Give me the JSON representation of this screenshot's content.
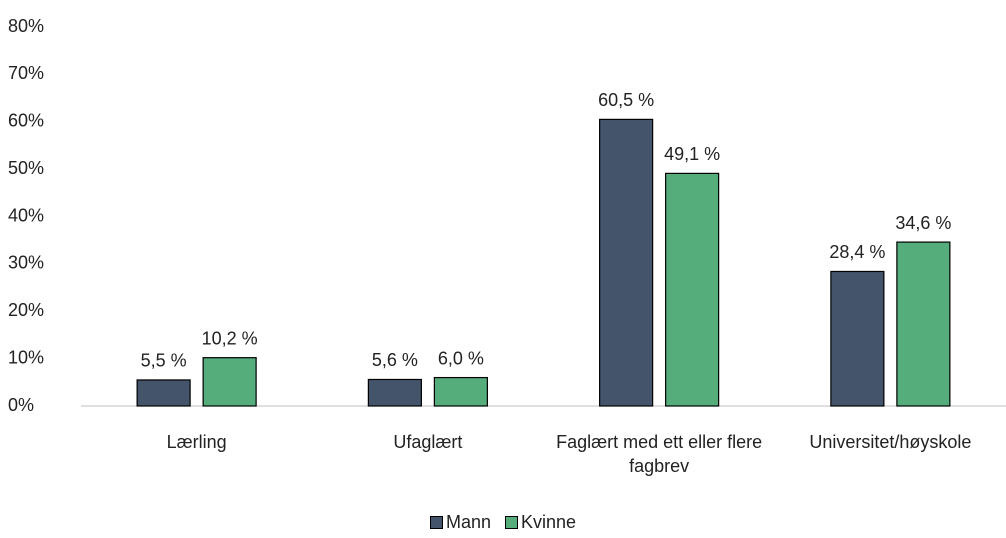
{
  "chart_data": {
    "type": "bar",
    "categories": [
      "Lærling",
      "Ufaglært",
      "Faglært med ett eller flere fagbrev",
      "Universitet/høyskole"
    ],
    "series": [
      {
        "name": "Mann",
        "color": "#44546a",
        "values": [
          5.5,
          5.6,
          60.5,
          28.4
        ],
        "value_labels": [
          "5,5 %",
          "5,6 %",
          "60,5 %",
          "28,4 %"
        ]
      },
      {
        "name": "Kvinne",
        "color": "#55ad7c",
        "values": [
          10.2,
          6.0,
          49.1,
          34.6
        ],
        "value_labels": [
          "10,2 %",
          "6,0 %",
          "49,1 %",
          "34,6 %"
        ]
      }
    ],
    "ylim": [
      0,
      80
    ],
    "yticks": [
      {
        "value": 0,
        "label": "0%"
      },
      {
        "value": 10,
        "label": "10%"
      },
      {
        "value": 20,
        "label": "20%"
      },
      {
        "value": 30,
        "label": "30%"
      },
      {
        "value": 40,
        "label": "40%"
      },
      {
        "value": 50,
        "label": "50%"
      },
      {
        "value": 60,
        "label": "60%"
      },
      {
        "value": 70,
        "label": "70%"
      },
      {
        "value": 80,
        "label": "80%"
      }
    ],
    "grid": false,
    "legend": "bottom"
  }
}
